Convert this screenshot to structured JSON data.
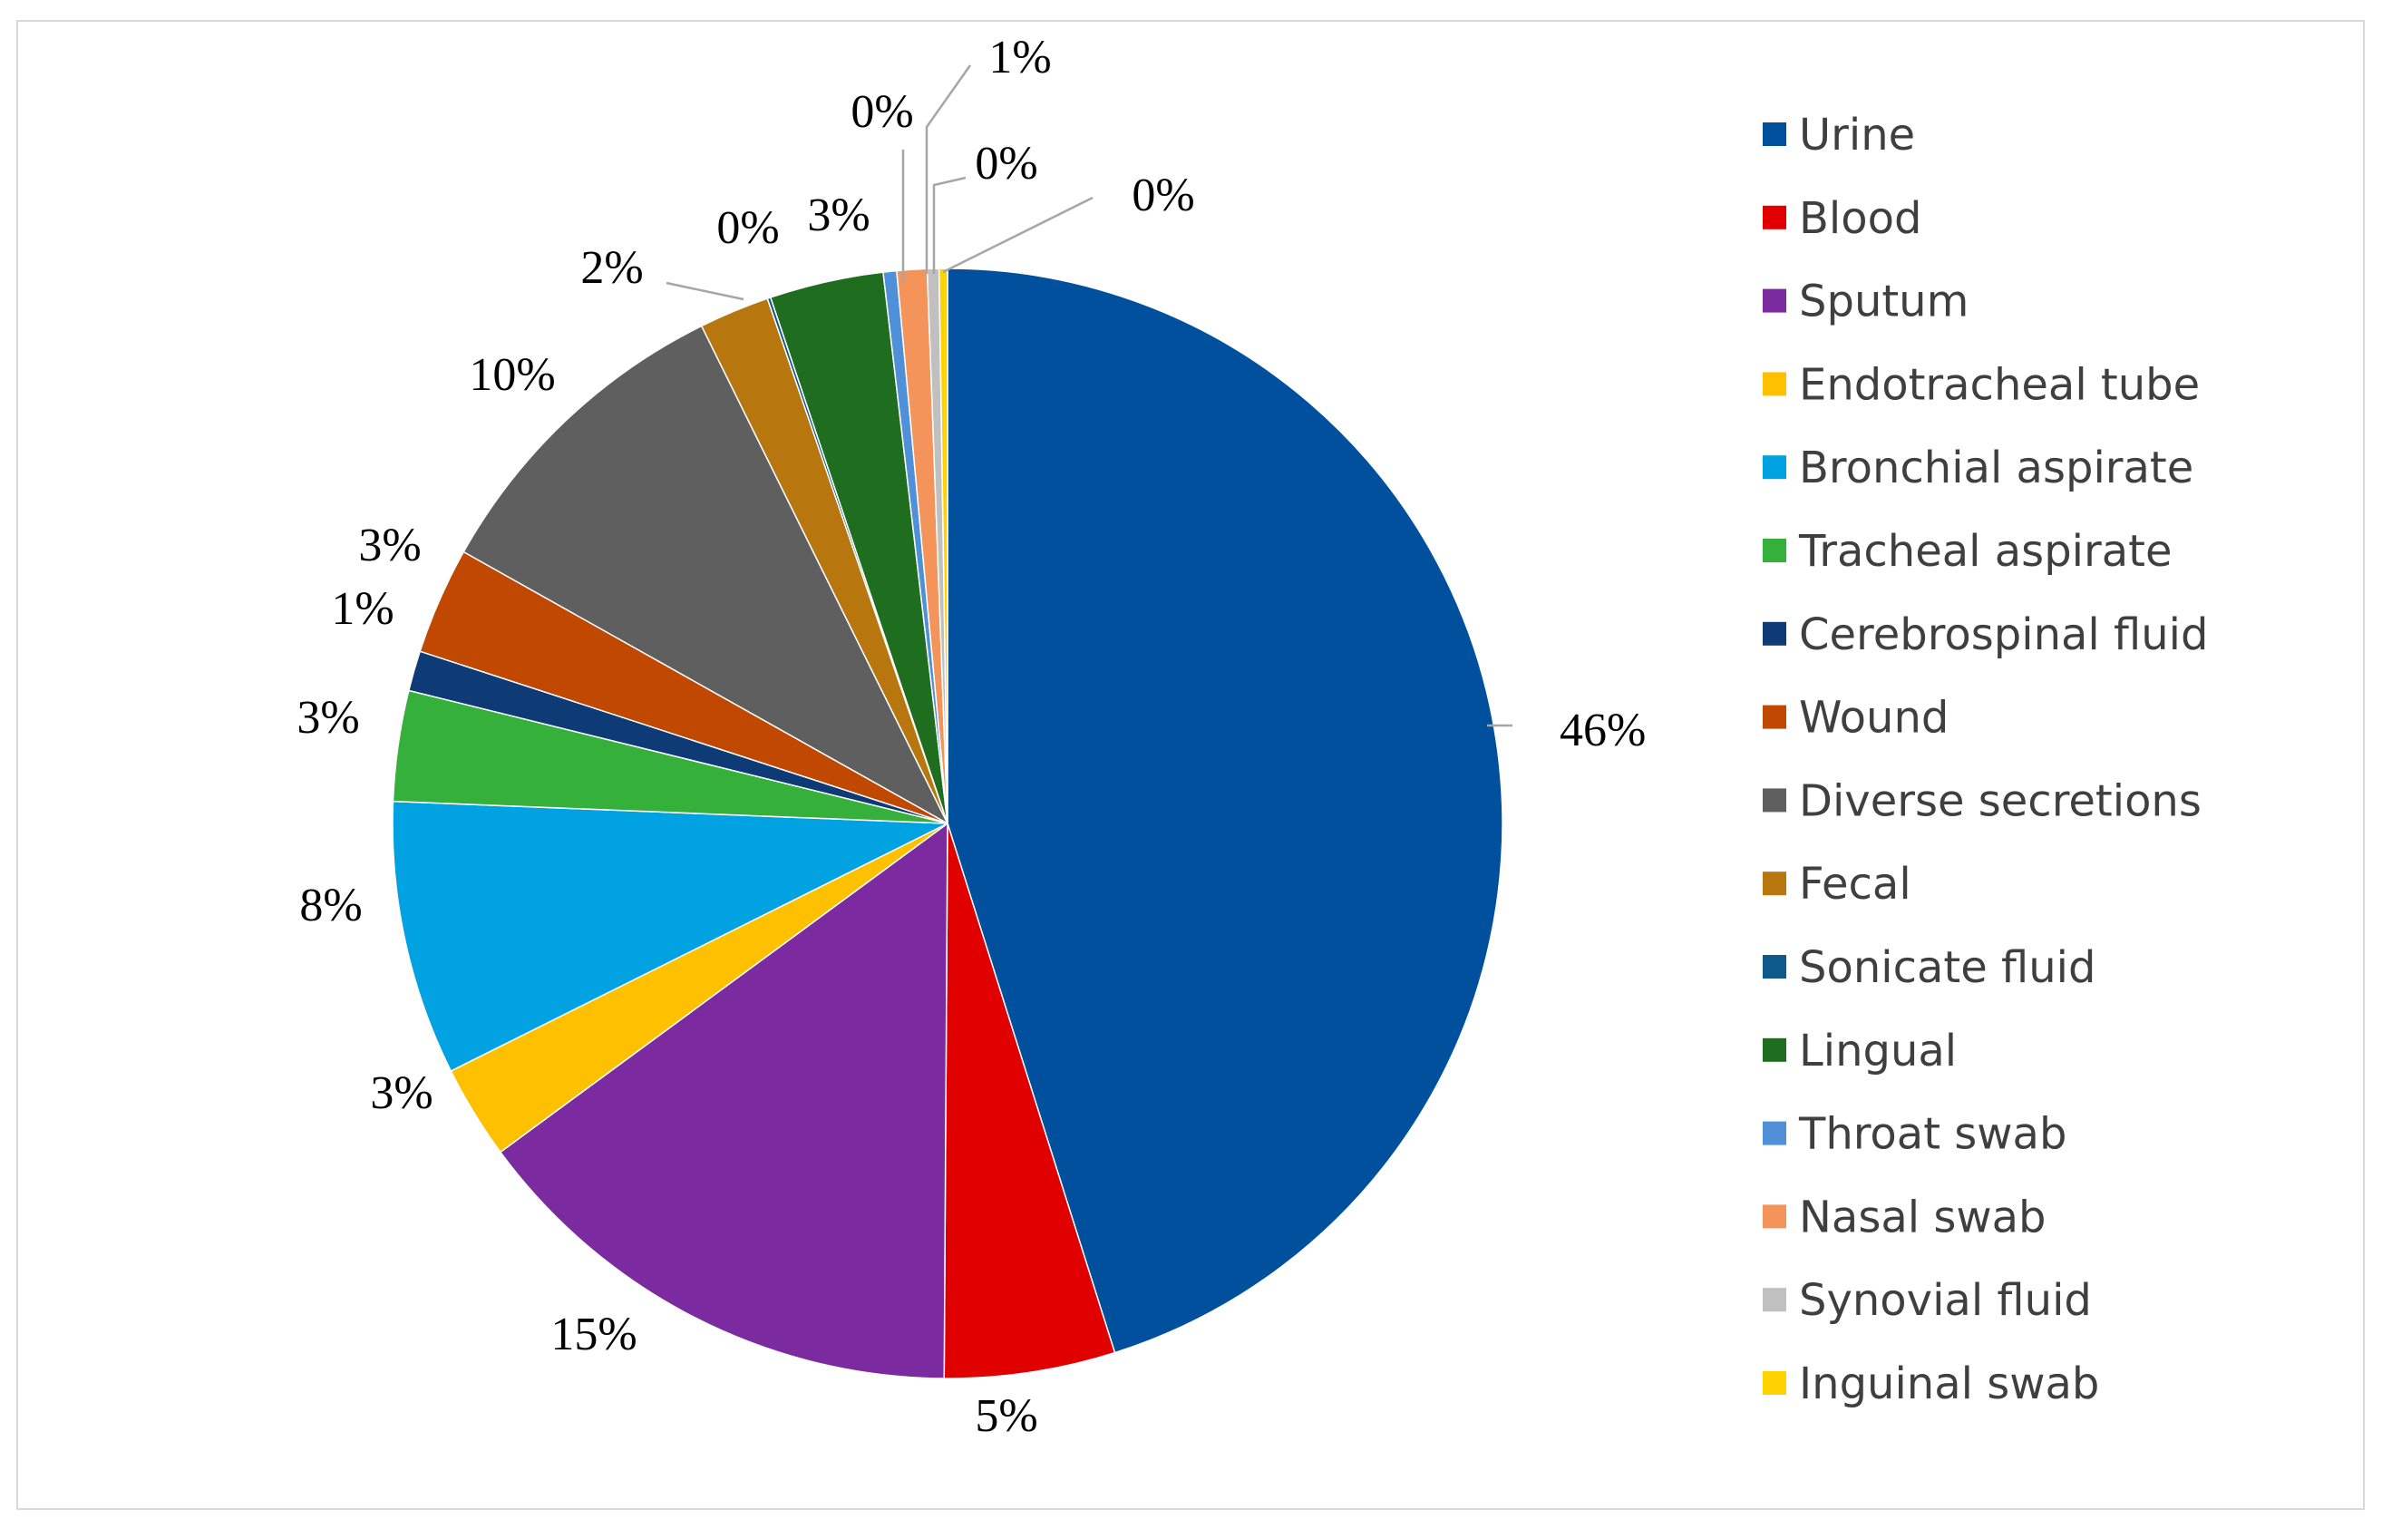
{
  "chart_data": {
    "type": "pie",
    "title": "",
    "legend_position": "right",
    "start": "top",
    "direction": "clockwise",
    "slices": [
      {
        "label": "Urine",
        "value": 46.3,
        "label_text": "46%",
        "color": "#00509e"
      },
      {
        "label": "Blood",
        "value": 5.1,
        "label_text": "5%",
        "color": "#e00000"
      },
      {
        "label": "Sputum",
        "value": 15.2,
        "label_text": "15%",
        "color": "#7b2aa0"
      },
      {
        "label": "Endotracheal tube",
        "value": 2.8,
        "label_text": "3%",
        "color": "#ffc000"
      },
      {
        "label": "Bronchial aspirate",
        "value": 8.2,
        "label_text": "8%",
        "color": "#00a2e2"
      },
      {
        "label": "Tracheal aspirate",
        "value": 3.3,
        "label_text": "3%",
        "color": "#35b03a"
      },
      {
        "label": "Cerebrospinal fluid",
        "value": 1.2,
        "label_text": "1%",
        "color": "#0e3b75"
      },
      {
        "label": "Wound",
        "value": 3.2,
        "label_text": "3%",
        "color": "#c04800"
      },
      {
        "label": "Diverse secretions",
        "value": 9.8,
        "label_text": "10%",
        "color": "#5f5f5f"
      },
      {
        "label": "Fecal",
        "value": 2.1,
        "label_text": "2%",
        "color": "#b8760e"
      },
      {
        "label": "Sonicate fluid",
        "value": 0.1,
        "label_text": "0%",
        "color": "#0e5a8c"
      },
      {
        "label": "Lingual",
        "value": 3.4,
        "label_text": "3%",
        "color": "#1f6e1f"
      },
      {
        "label": "Throat swab",
        "value": 0.4,
        "label_text": "0%",
        "color": "#4f90d8"
      },
      {
        "label": "Nasal swab",
        "value": 0.9,
        "label_text": "1%",
        "color": "#f4935a"
      },
      {
        "label": "Synovial fluid",
        "value": 0.35,
        "label_text": "0%",
        "color": "#c0c0c0"
      },
      {
        "label": "Inguinal swab",
        "value": 0.25,
        "label_text": "0%",
        "color": "#ffd200"
      }
    ]
  }
}
